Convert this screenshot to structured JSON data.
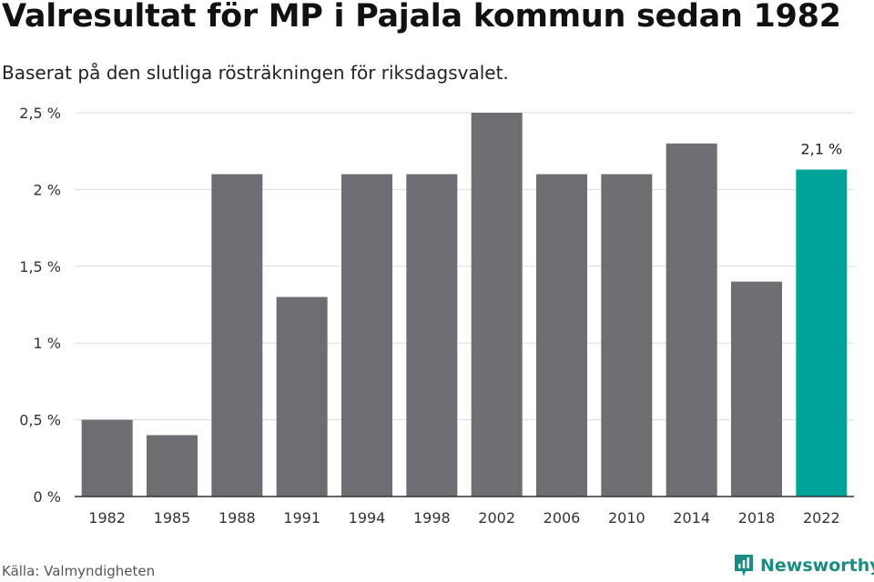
{
  "title": "Valresultat för MP i Pajala kommun sedan 1982",
  "subtitle": "Baserat på den slutliga rösträkningen för riksdagsvalet.",
  "source": "Källa: Valmyndigheten",
  "brand": {
    "name": "Newsworthy",
    "logo_icon": "newsworthy-logo-icon"
  },
  "colors": {
    "bar": "#6e6d72",
    "highlight": "#00a39a",
    "grid": "#dcdcdc",
    "axis": "#333333",
    "brand": "#1a8c86"
  },
  "chart_data": {
    "type": "bar",
    "categories": [
      "1982",
      "1985",
      "1988",
      "1991",
      "1994",
      "1998",
      "2002",
      "2006",
      "2010",
      "2014",
      "2018",
      "2022"
    ],
    "values": [
      0.5,
      0.4,
      2.1,
      1.3,
      2.1,
      2.1,
      2.5,
      2.1,
      2.1,
      2.3,
      1.4,
      2.13
    ],
    "ylim": [
      0,
      2.5
    ],
    "yticks": [
      0,
      0.5,
      1,
      1.5,
      2,
      2.5
    ],
    "ytick_labels": [
      "0 %",
      "0,5 %",
      "1 %",
      "1,5 %",
      "2 %",
      "2,5 %"
    ],
    "highlight_index": 11,
    "annotation": "2,1 %",
    "grid": true,
    "legend": "none"
  }
}
